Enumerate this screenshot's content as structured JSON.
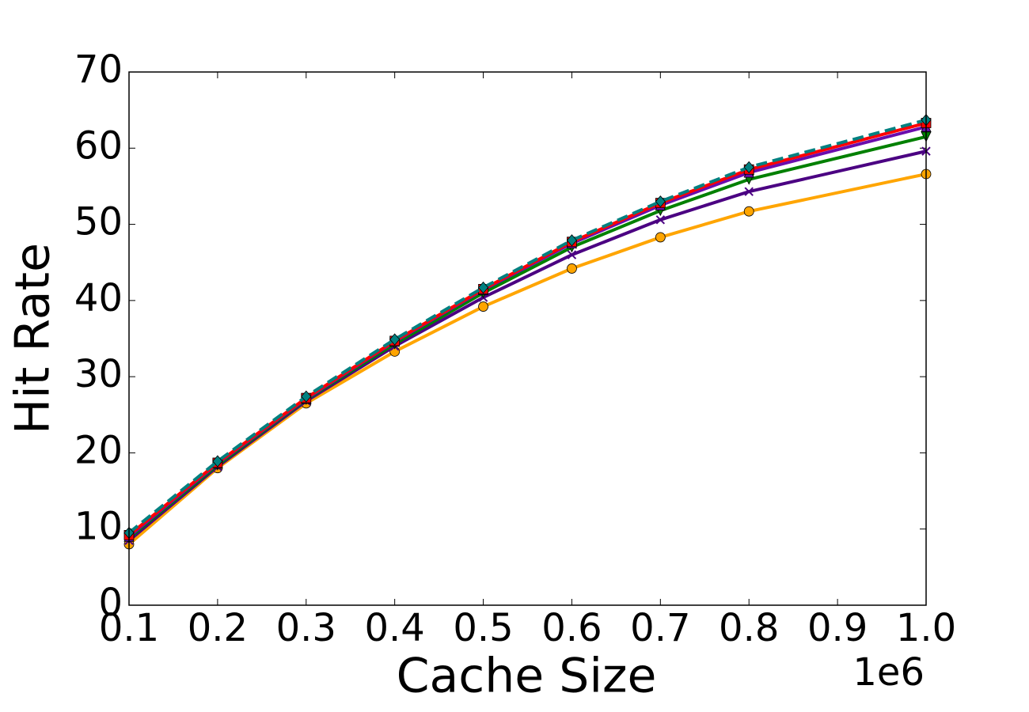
{
  "chart_data": {
    "type": "line",
    "xlabel": "Cache Size",
    "ylabel": "Hit Rate",
    "x_offset_label": "1e6",
    "x": [
      0.1,
      0.2,
      0.3,
      0.4,
      0.5,
      0.6,
      0.7,
      0.8,
      1.0
    ],
    "series": [
      {
        "color": "#ffa500",
        "marker": "circle",
        "linestyle": "solid",
        "values": [
          8.0,
          18.0,
          26.5,
          33.3,
          39.2,
          44.2,
          48.3,
          51.7,
          56.6
        ]
      },
      {
        "color": "#4b0082",
        "marker": "x",
        "linestyle": "solid",
        "values": [
          8.5,
          18.2,
          26.8,
          34.0,
          40.4,
          46.0,
          50.6,
          54.3,
          59.6
        ]
      },
      {
        "color": "#008000",
        "marker": "triangle-down",
        "linestyle": "solid",
        "values": [
          8.8,
          18.4,
          27.0,
          34.3,
          41.0,
          47.0,
          51.8,
          55.9,
          61.5
        ]
      },
      {
        "color": "#6a0dad",
        "marker": "triangle-up",
        "linestyle": "solid",
        "values": [
          9.0,
          18.6,
          27.1,
          34.6,
          41.4,
          47.5,
          52.5,
          56.8,
          62.8
        ]
      },
      {
        "color": "#ff0000",
        "marker": "square",
        "linestyle": "solid",
        "values": [
          9.2,
          18.7,
          27.2,
          34.7,
          41.5,
          47.7,
          52.8,
          57.2,
          63.3
        ]
      },
      {
        "color": "#008080",
        "marker": "diamond",
        "linestyle": "dashed",
        "values": [
          9.5,
          18.9,
          27.4,
          34.9,
          41.7,
          47.9,
          53.0,
          57.5,
          63.7
        ]
      }
    ],
    "xlim": [
      0.1,
      1.0
    ],
    "xticks": [
      0.1,
      0.2,
      0.3,
      0.4,
      0.5,
      0.6,
      0.7,
      0.8,
      0.9,
      {
        "value": 1.0,
        "label": "1.0"
      }
    ],
    "ylim": [
      0,
      70
    ],
    "yticks": [
      0,
      10,
      20,
      30,
      40,
      50,
      60,
      70
    ],
    "grid": false
  }
}
